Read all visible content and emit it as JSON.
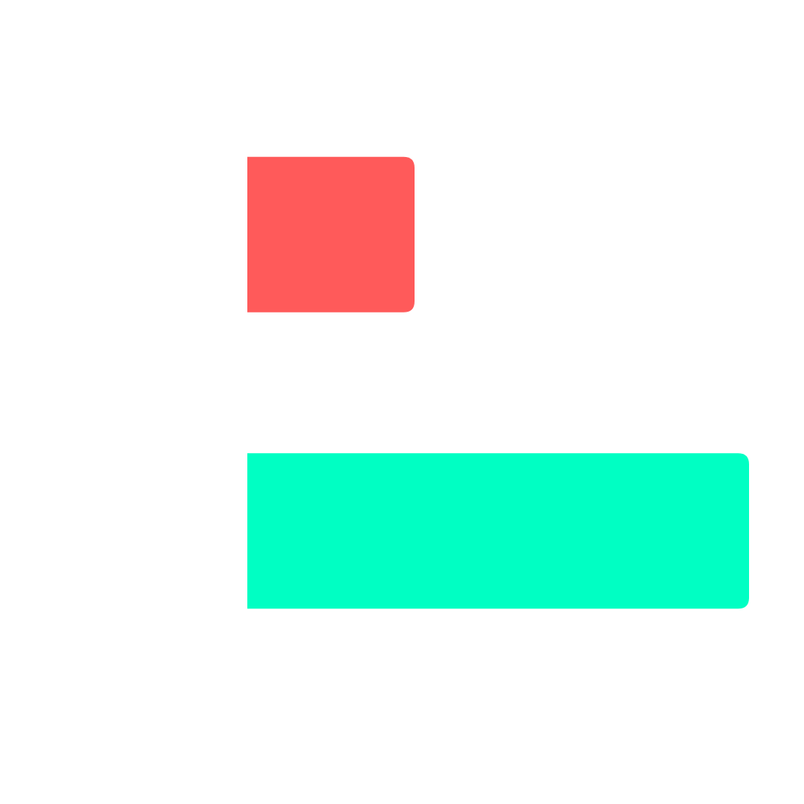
{
  "chart_data": {
    "type": "bar",
    "orientation": "horizontal",
    "values": [
      1,
      3
    ],
    "colors": [
      "#ff5a5a",
      "#00ffc3"
    ],
    "xlim": [
      0,
      3
    ],
    "grid": false,
    "legend": "none",
    "axes_visible": false
  }
}
